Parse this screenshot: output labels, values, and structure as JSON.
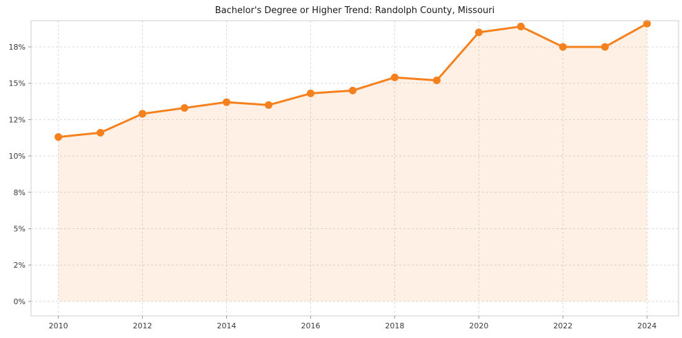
{
  "chart_data": {
    "type": "line",
    "title": "Bachelor's Degree or Higher Trend: Randolph County, Missouri",
    "xlabel": "",
    "ylabel": "",
    "x": [
      2010,
      2011,
      2012,
      2013,
      2014,
      2015,
      2016,
      2017,
      2018,
      2019,
      2020,
      2021,
      2022,
      2023,
      2024
    ],
    "values": [
      11.3,
      11.6,
      12.9,
      13.3,
      13.7,
      13.5,
      14.3,
      14.5,
      15.4,
      15.2,
      18.5,
      18.9,
      17.5,
      17.5,
      19.1
    ],
    "unit": "%",
    "xlim": [
      2009.35,
      2024.75
    ],
    "ylim": [
      -1.0,
      19.3
    ],
    "yticks": {
      "values": [
        0,
        2.5,
        5,
        7.5,
        10,
        12.5,
        15,
        17.5
      ],
      "labels": [
        "0%",
        "2%",
        "5%",
        "8%",
        "10%",
        "12%",
        "15%",
        "18%"
      ]
    },
    "xticks": {
      "values": [
        2010,
        2012,
        2014,
        2016,
        2018,
        2020,
        2022,
        2024
      ],
      "labels": [
        "2010",
        "2012",
        "2014",
        "2016",
        "2018",
        "2020",
        "2022",
        "2024"
      ]
    },
    "grid": true,
    "legend": "none",
    "colors": {
      "line": "#f5801e",
      "marker": "#f5801e",
      "fill": "rgba(245,128,30,0.12)",
      "grid": "#d9d9d9",
      "border": "#cccccc",
      "tick": "#999999",
      "text": "#3a3a3a"
    }
  }
}
